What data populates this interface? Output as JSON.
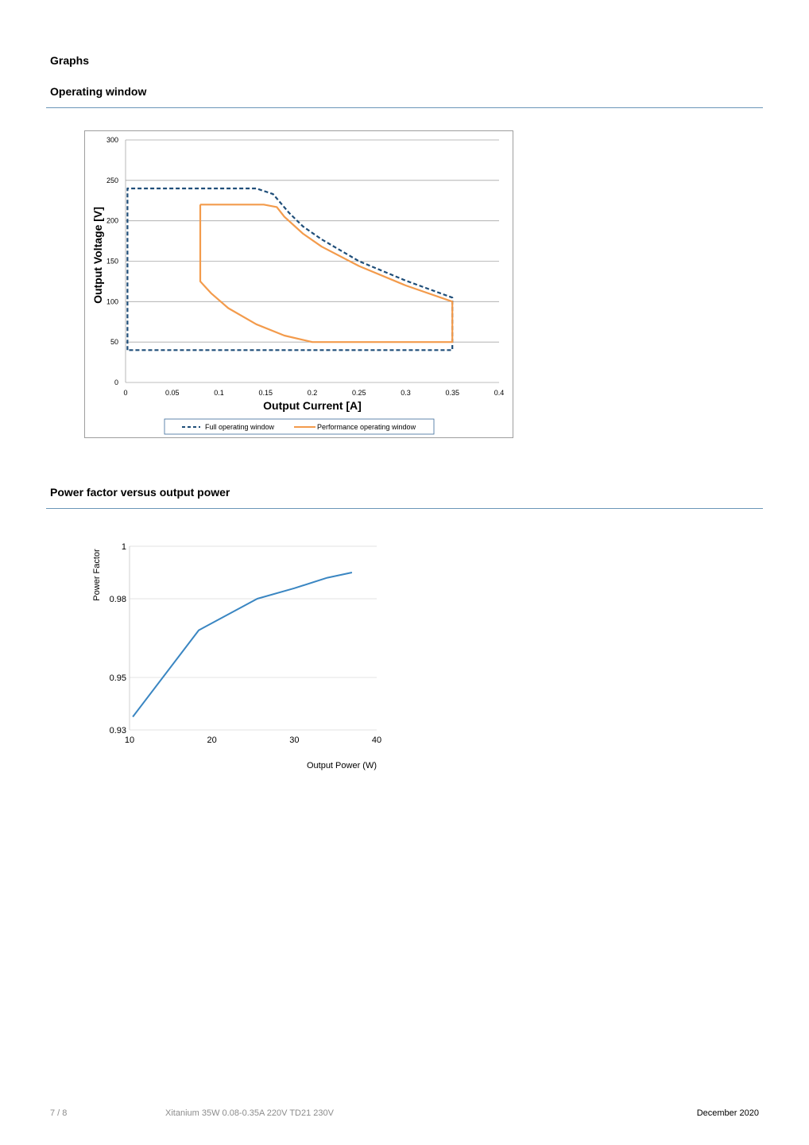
{
  "page": {
    "heading": "Graphs",
    "sections": [
      {
        "title": "Operating window"
      },
      {
        "title": "Power factor versus output power"
      }
    ]
  },
  "footer": {
    "page_number": "7 / 8",
    "product": "Xitanium 35W 0.08-0.35A 220V TD21 230V",
    "date": "December 2020"
  },
  "chart_data": [
    {
      "type": "line",
      "title": "",
      "xlabel": "Output Current [A]",
      "ylabel": "Output Voltage [V]",
      "xlim": [
        0,
        0.4
      ],
      "ylim": [
        0,
        300
      ],
      "x_ticks": [
        "0",
        "0.05",
        "0.1",
        "0.15",
        "0.2",
        "0.25",
        "0.3",
        "0.35",
        "0.4"
      ],
      "y_ticks": [
        "0",
        "50",
        "100",
        "150",
        "200",
        "250",
        "300"
      ],
      "grid": true,
      "legend": "bottom",
      "series": [
        {
          "name": "Full operating window",
          "color": "#1f4e79",
          "dash": true,
          "points": [
            [
              0.002,
              40
            ],
            [
              0.002,
              240
            ],
            [
              0.14,
              240
            ],
            [
              0.158,
              233
            ],
            [
              0.175,
              210
            ],
            [
              0.19,
              193
            ],
            [
              0.21,
              177
            ],
            [
              0.25,
              150
            ],
            [
              0.3,
              126
            ],
            [
              0.35,
              105
            ],
            [
              0.35,
              40
            ],
            [
              0.002,
              40
            ]
          ]
        },
        {
          "name": "Performance operating window",
          "color": "#f39b4c",
          "dash": false,
          "points": [
            [
              0.08,
              220
            ],
            [
              0.148,
              220
            ],
            [
              0.162,
              217
            ],
            [
              0.17,
              205
            ],
            [
              0.19,
              184
            ],
            [
              0.21,
              168
            ],
            [
              0.25,
              144
            ],
            [
              0.3,
              120
            ],
            [
              0.35,
              100
            ],
            [
              0.35,
              50
            ],
            [
              0.2,
              50
            ],
            [
              0.17,
              58
            ],
            [
              0.14,
              72
            ],
            [
              0.11,
              92
            ],
            [
              0.092,
              110
            ],
            [
              0.08,
              125
            ],
            [
              0.08,
              220
            ]
          ]
        }
      ]
    },
    {
      "type": "line",
      "title": "",
      "xlabel": "Output Power (W)",
      "ylabel": "Power Factor",
      "xlim": [
        10,
        40
      ],
      "ylim": [
        0.93,
        1
      ],
      "x_ticks": [
        "10",
        "20",
        "30",
        "40"
      ],
      "y_ticks": [
        "0.93",
        "0.95",
        "0.98",
        "1"
      ],
      "grid": true,
      "legend": "none",
      "series": [
        {
          "color": "#3a86c2",
          "points": [
            [
              10.4,
              0.935
            ],
            [
              18.4,
              0.968
            ],
            [
              25.5,
              0.98
            ],
            [
              30,
              0.984
            ],
            [
              34,
              0.988
            ],
            [
              37,
              0.99
            ]
          ]
        }
      ]
    }
  ]
}
